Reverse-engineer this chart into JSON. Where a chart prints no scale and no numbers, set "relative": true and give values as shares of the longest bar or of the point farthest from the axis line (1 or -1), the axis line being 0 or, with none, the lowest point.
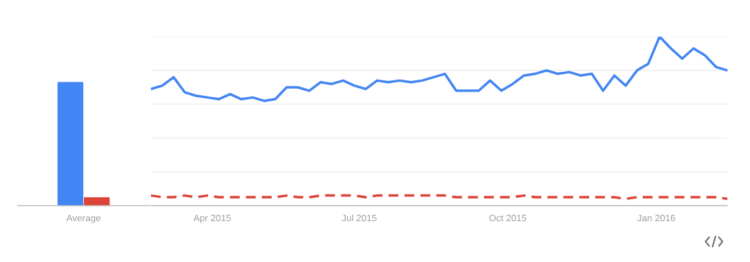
{
  "chart_data": [
    {
      "type": "bar",
      "relative": true,
      "categories": [
        "Average"
      ],
      "grid": false,
      "series": [
        {
          "color": "#4285f4",
          "values": [
            1
          ]
        },
        {
          "color": "#db4437",
          "values": [
            0.07
          ]
        }
      ]
    },
    {
      "type": "line",
      "relative": true,
      "grid": "y",
      "marker": "none",
      "x": [
        "2015-02-22",
        "2015-03-01",
        "2015-03-08",
        "2015-03-15",
        "2015-03-22",
        "2015-03-29",
        "2015-04-05",
        "2015-04-12",
        "2015-04-19",
        "2015-04-26",
        "2015-05-03",
        "2015-05-10",
        "2015-05-17",
        "2015-05-24",
        "2015-05-31",
        "2015-06-07",
        "2015-06-14",
        "2015-06-21",
        "2015-06-28",
        "2015-07-05",
        "2015-07-12",
        "2015-07-19",
        "2015-07-26",
        "2015-08-02",
        "2015-08-09",
        "2015-08-16",
        "2015-08-23",
        "2015-08-30",
        "2015-09-06",
        "2015-09-13",
        "2015-09-20",
        "2015-09-27",
        "2015-10-04",
        "2015-10-11",
        "2015-10-18",
        "2015-10-25",
        "2015-11-01",
        "2015-11-08",
        "2015-11-15",
        "2015-11-22",
        "2015-11-29",
        "2015-12-06",
        "2015-12-13",
        "2015-12-20",
        "2015-12-27",
        "2016-01-03",
        "2016-01-10",
        "2016-01-17",
        "2016-01-24",
        "2016-01-31",
        "2016-02-07",
        "2016-02-14"
      ],
      "xlim": [
        "2015-02-22",
        "2016-02-14"
      ],
      "xticks": [
        {
          "value": "2015-04-01",
          "label": "Apr 2015"
        },
        {
          "value": "2015-07-01",
          "label": "Jul 2015"
        },
        {
          "value": "2015-10-01",
          "label": "Oct 2015"
        },
        {
          "value": "2016-01-01",
          "label": "Jan 2016"
        }
      ],
      "series": [
        {
          "color": "#4285f4",
          "line_style": "solid",
          "values": [
            0.69,
            0.71,
            0.76,
            0.67,
            0.65,
            0.64,
            0.63,
            0.66,
            0.63,
            0.64,
            0.62,
            0.63,
            0.7,
            0.7,
            0.68,
            0.73,
            0.72,
            0.74,
            0.71,
            0.69,
            0.74,
            0.73,
            0.74,
            0.73,
            0.74,
            0.76,
            0.78,
            0.68,
            0.68,
            0.68,
            0.74,
            0.68,
            0.72,
            0.77,
            0.78,
            0.8,
            0.78,
            0.79,
            0.77,
            0.78,
            0.68,
            0.77,
            0.71,
            0.8,
            0.84,
            1.0,
            0.93,
            0.87,
            0.93,
            0.89,
            0.82,
            0.8
          ]
        },
        {
          "color": "#db4437",
          "line_style": "dashed",
          "values": [
            0.06,
            0.05,
            0.05,
            0.06,
            0.05,
            0.06,
            0.05,
            0.05,
            0.05,
            0.05,
            0.05,
            0.05,
            0.06,
            0.05,
            0.05,
            0.06,
            0.06,
            0.06,
            0.06,
            0.05,
            0.06,
            0.06,
            0.06,
            0.06,
            0.06,
            0.06,
            0.06,
            0.05,
            0.05,
            0.05,
            0.05,
            0.05,
            0.05,
            0.06,
            0.05,
            0.05,
            0.05,
            0.05,
            0.05,
            0.05,
            0.05,
            0.05,
            0.04,
            0.05,
            0.05,
            0.05,
            0.05,
            0.05,
            0.05,
            0.05,
            0.05,
            0.04
          ]
        }
      ]
    }
  ]
}
